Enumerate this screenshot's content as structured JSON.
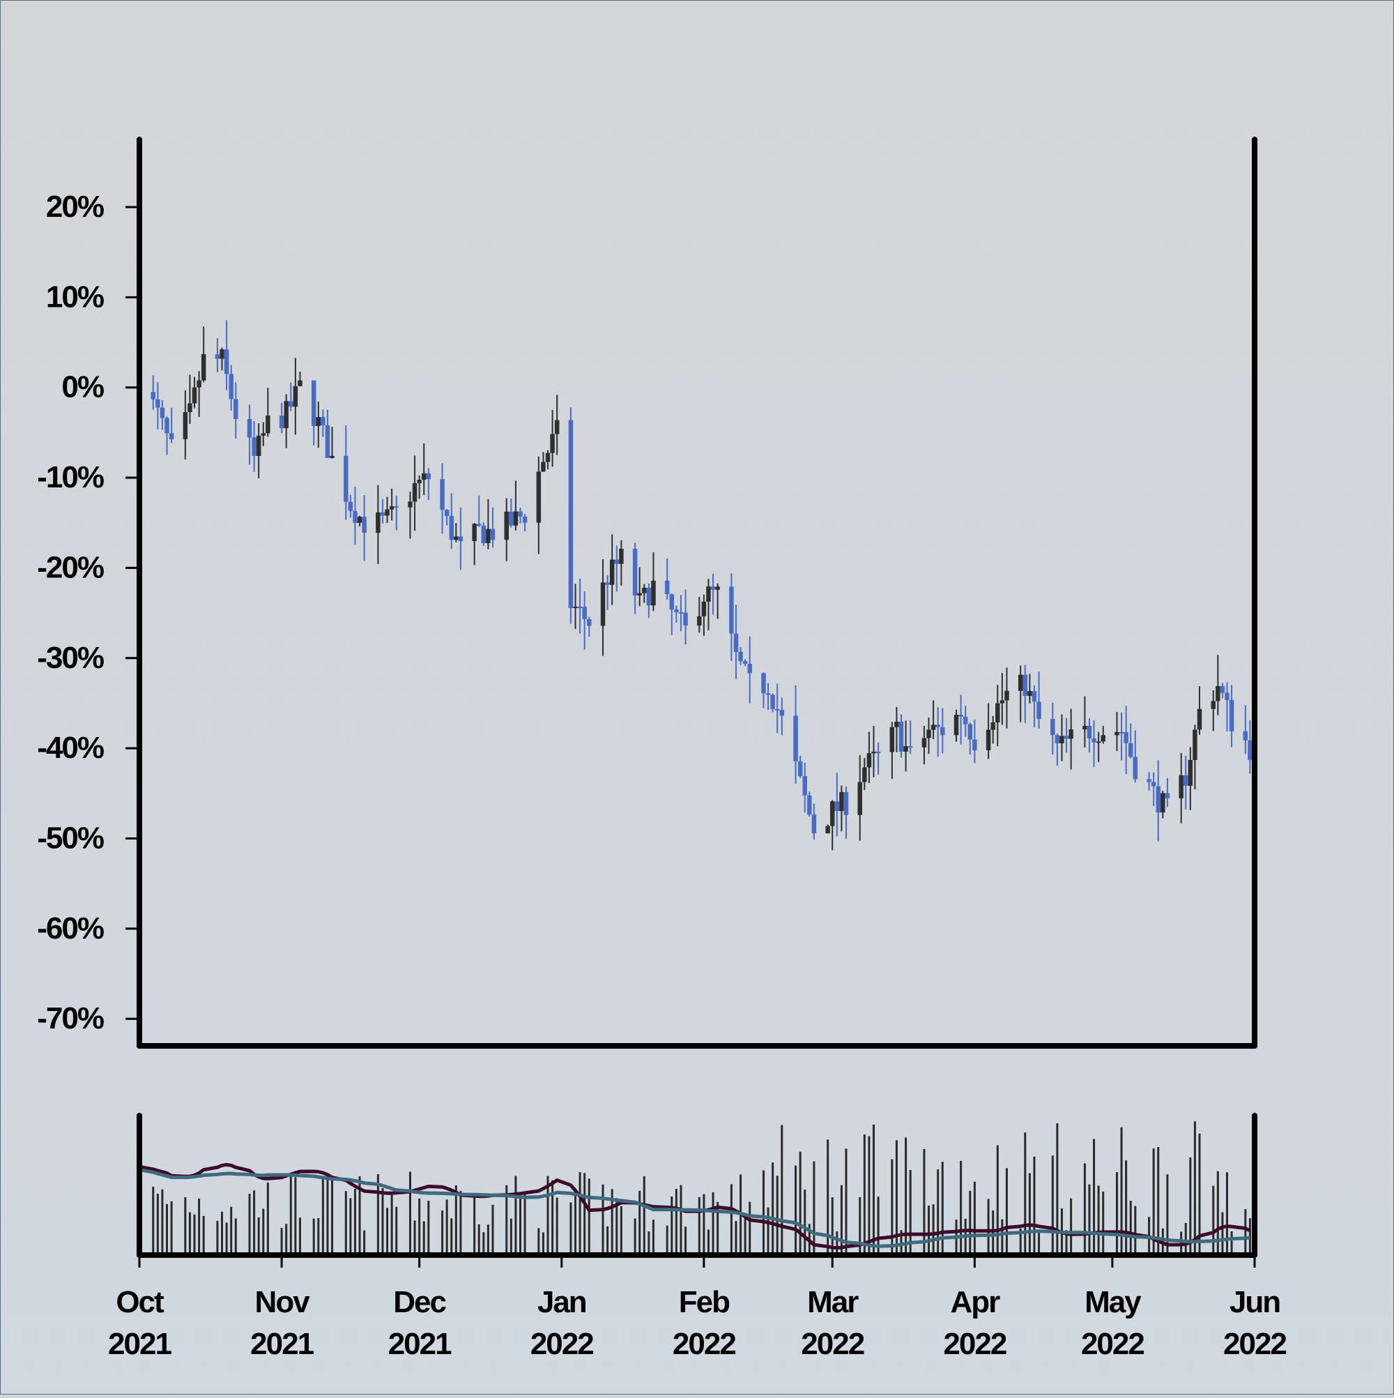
{
  "chart_data": [
    {
      "type": "candlestick",
      "panel": "price",
      "y_tick_labels": [
        "20%",
        "10%",
        "0%",
        "-10%",
        "-20%",
        "-30%",
        "-40%",
        "-50%",
        "-60%",
        "-70%"
      ],
      "y_ticks": [
        20,
        10,
        0,
        -10,
        -20,
        -30,
        -40,
        -50,
        -60,
        -70
      ],
      "ylim": [
        -73,
        27.5
      ],
      "xlim": [
        "2021-10-01",
        "2022-06-01"
      ],
      "x_tick_labels": [
        {
          "month": "Oct",
          "year": "2021"
        },
        {
          "month": "Nov",
          "year": "2021"
        },
        {
          "month": "Dec",
          "year": "2021"
        },
        {
          "month": "Jan",
          "year": "2022"
        },
        {
          "month": "Feb",
          "year": "2022"
        },
        {
          "month": "Mar",
          "year": "2022"
        },
        {
          "month": "Apr",
          "year": "2022"
        },
        {
          "month": "May",
          "year": "2022"
        },
        {
          "month": "Jun",
          "year": "2022"
        }
      ],
      "x_ticks": [
        "2021-10-01",
        "2021-11-01",
        "2021-12-01",
        "2022-01-01",
        "2022-02-01",
        "2022-03-01",
        "2022-04-01",
        "2022-05-01",
        "2022-06-01"
      ],
      "close_series_approx": {
        "dates": [
          "2021-10-01",
          "2021-10-05",
          "2021-10-08",
          "2021-10-12",
          "2021-10-15",
          "2021-10-19",
          "2021-10-22",
          "2021-10-26",
          "2021-10-29",
          "2021-11-02",
          "2021-11-05",
          "2021-11-09",
          "2021-11-12",
          "2021-11-16",
          "2021-11-19",
          "2021-11-23",
          "2021-11-26",
          "2021-11-30",
          "2021-12-03",
          "2021-12-07",
          "2021-12-10",
          "2021-12-14",
          "2021-12-17",
          "2021-12-21",
          "2021-12-24",
          "2021-12-28",
          "2021-12-31",
          "2022-01-03",
          "2022-01-07",
          "2022-01-11",
          "2022-01-14",
          "2022-01-18",
          "2022-01-21",
          "2022-01-25",
          "2022-01-28",
          "2022-02-01",
          "2022-02-04",
          "2022-02-08",
          "2022-02-11",
          "2022-02-15",
          "2022-02-18",
          "2022-02-22",
          "2022-02-25",
          "2022-03-01",
          "2022-03-04",
          "2022-03-08",
          "2022-03-11",
          "2022-03-15",
          "2022-03-18",
          "2022-03-22",
          "2022-03-25",
          "2022-03-29",
          "2022-04-01",
          "2022-04-05",
          "2022-04-08",
          "2022-04-12",
          "2022-04-15",
          "2022-04-19",
          "2022-04-22",
          "2022-04-26",
          "2022-04-29",
          "2022-05-03",
          "2022-05-06",
          "2022-05-10",
          "2022-05-13",
          "2022-05-17",
          "2022-05-20",
          "2022-05-24",
          "2022-05-27",
          "2022-05-31"
        ],
        "close": [
          1,
          -3,
          -7,
          -3,
          3,
          3,
          -3,
          -8,
          -4,
          -3,
          0,
          -4,
          -8,
          -13,
          -15,
          -15,
          -14,
          -11,
          -10,
          -15,
          -18,
          -16,
          -16,
          -15,
          -14,
          -8,
          -5,
          -24,
          -26,
          -21,
          -19,
          -24,
          -22,
          -25,
          -27,
          -23,
          -23,
          -30,
          -33,
          -33,
          -37,
          -44,
          -49,
          -47,
          -46,
          -42,
          -41,
          -38,
          -41,
          -38,
          -38,
          -36,
          -39,
          -36,
          -34,
          -33,
          -37,
          -40,
          -39,
          -38,
          -38,
          -38,
          -42,
          -45,
          -47,
          -43,
          -36,
          -33,
          -37,
          -40
        ]
      },
      "colors": {
        "up": "#2f2f2f",
        "down": "#4a6bc4"
      }
    },
    {
      "type": "bar",
      "panel": "volume",
      "bar_color": "#2a2a2a",
      "moving_averages": [
        {
          "color": "#3d0a2c"
        },
        {
          "color": "#3f6a80"
        }
      ]
    }
  ]
}
